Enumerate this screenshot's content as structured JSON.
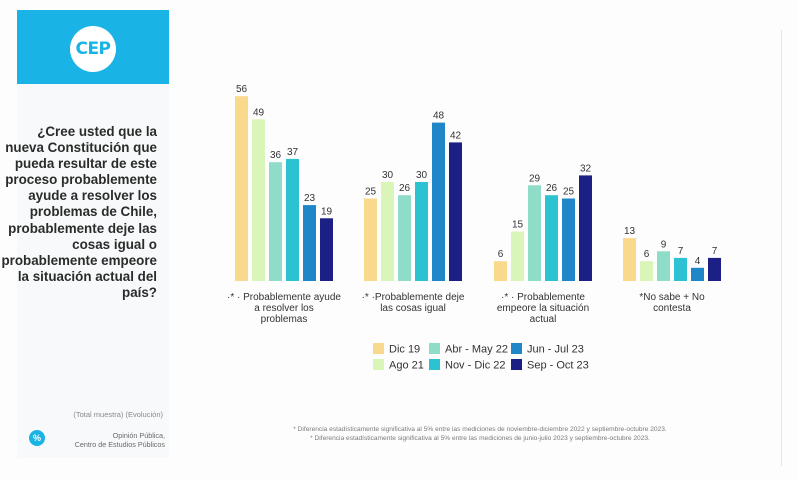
{
  "brand": {
    "logo_text": "CEP"
  },
  "question": "¿Cree usted que la nueva Constitución que pueda resultar de este proceso probablemente ayude a resolver los problemas de Chile, probablemente deje las cosas igual o probablemente empeore la situación actual del país?",
  "sample_note": "(Total muestra) (Evolución)",
  "badge": "%",
  "source": {
    "line1": "Opinión Pública,",
    "line2": "Centro de Estudios Públicos"
  },
  "footnotes": {
    "line1": "* Diferencia estadísticamente significativa al 5% entre las mediciones de noviembre-diciembre 2022 y septiembre-octubre 2023.",
    "line2": "* Diferencia estadísticamente significativa al 5% entre las mediciones de junio-julio 2023 y septiembre-octubre 2023."
  },
  "chart_data": {
    "type": "bar",
    "categories": [
      [
        "·* · Probablemente ayude",
        "a resolver los",
        "problemas"
      ],
      [
        "·* ·Probablemente deje",
        "las cosas igual"
      ],
      [
        "·* · Probablemente",
        "empeore la situación",
        "actual"
      ],
      [
        "*No sabe + No",
        "contesta"
      ]
    ],
    "series": [
      {
        "name": "Dic 19",
        "color": "#f9d98c",
        "values": [
          56,
          25,
          6,
          13
        ]
      },
      {
        "name": "Ago 21",
        "color": "#d9f5b8",
        "values": [
          49,
          30,
          15,
          6
        ]
      },
      {
        "name": "Abr - May 22",
        "color": "#8fdcc8",
        "values": [
          36,
          26,
          29,
          9
        ]
      },
      {
        "name": "Nov - Dic 22",
        "color": "#2cc2d1",
        "values": [
          37,
          30,
          26,
          7
        ]
      },
      {
        "name": "Jun - Jul 23",
        "color": "#1f86c8",
        "values": [
          23,
          48,
          25,
          4
        ]
      },
      {
        "name": "Sep - Oct 23",
        "color": "#1c1f84",
        "values": [
          19,
          42,
          32,
          7
        ]
      }
    ],
    "ylim": [
      0,
      60
    ],
    "legend_position": "bottom",
    "grid": false
  }
}
